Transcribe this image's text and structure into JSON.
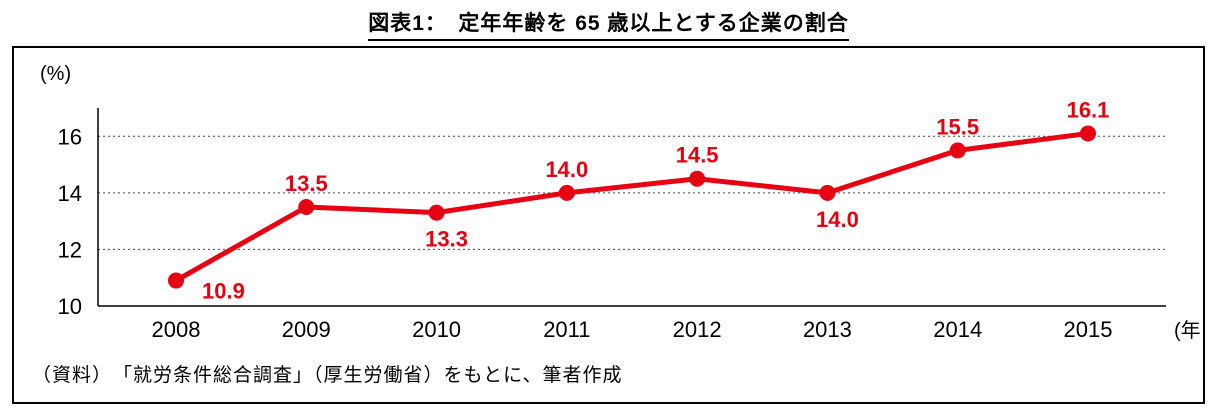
{
  "title": "図表1：　定年年齢を 65 歳以上とする企業の割合",
  "source_note": "（資料）　「就労条件総合調査」（厚生労働省）をもとに、筆者作成",
  "chart_data": {
    "type": "line",
    "title": "図表1：　定年年齢を 65 歳以上とする企業の割合",
    "x_labels": [
      "2008",
      "2009",
      "2010",
      "2011",
      "2012",
      "2013",
      "2014",
      "2015"
    ],
    "values": [
      10.9,
      13.5,
      13.3,
      14.0,
      14.5,
      14.0,
      15.5,
      16.1
    ],
    "point_labels": [
      "10.9",
      "13.5",
      "13.3",
      "14.0",
      "14.5",
      "14.0",
      "15.5",
      "16.1"
    ],
    "label_positions": [
      "right",
      "above",
      "below",
      "above",
      "above",
      "below",
      "above",
      "above"
    ],
    "ylabel": "(%)",
    "xlabel": "(年)",
    "ylim": [
      10,
      17
    ],
    "yticks": [
      10,
      12,
      14,
      16
    ],
    "grid": true,
    "legend": "none",
    "line_color": "#e60012",
    "label_color": "#e60012",
    "axis_color": "#000000",
    "grid_color": "#444444"
  }
}
